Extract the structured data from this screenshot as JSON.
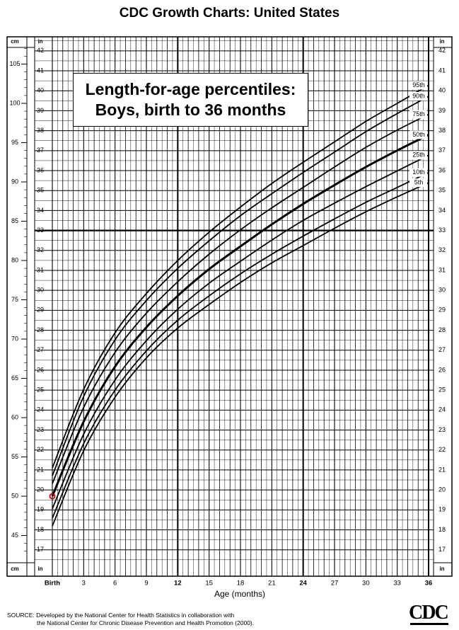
{
  "page": {
    "title": "CDC Growth Charts: United States",
    "source_line1": "SOURCE: Developed by the National Center for Health Statistics in collaboration with",
    "source_line2": "the National Center for Chronic Disease Prevention and Health Promotion (2000).",
    "logo_text": "CDC"
  },
  "chart_data": {
    "type": "line",
    "title_line1": "Length-for-age percentiles:",
    "title_line2": "Boys, birth to 36 months",
    "xlabel": "Age (months)",
    "x_ticks": [
      0,
      3,
      6,
      9,
      12,
      15,
      18,
      21,
      24,
      27,
      30,
      33,
      36
    ],
    "x_tick_labels": [
      "Birth",
      "3",
      "6",
      "9",
      "12",
      "15",
      "18",
      "21",
      "24",
      "27",
      "30",
      "33",
      "36"
    ],
    "x_bold_ticks": [
      12,
      24,
      36
    ],
    "xlim": [
      0,
      36
    ],
    "unit_cm": "cm",
    "unit_in": "in",
    "cm_ticks": [
      45,
      50,
      55,
      60,
      65,
      70,
      75,
      80,
      85,
      90,
      95,
      100,
      105
    ],
    "in_ticks": [
      17,
      18,
      19,
      20,
      21,
      22,
      23,
      24,
      25,
      26,
      27,
      28,
      29,
      30,
      31,
      32,
      33,
      34,
      35,
      36,
      37,
      38,
      39,
      40,
      41,
      42
    ],
    "ylim_cm": [
      42.9,
      108.5
    ],
    "grid": true,
    "x": [
      0,
      3,
      6,
      9,
      12,
      15,
      18,
      21,
      24,
      27,
      30,
      33,
      36
    ],
    "series": [
      {
        "name": "95th",
        "values": [
          53.6,
          63.6,
          70.8,
          75.8,
          80.0,
          83.6,
          86.8,
          89.8,
          92.5,
          95.1,
          97.7,
          100.0,
          102.3
        ]
      },
      {
        "name": "90th",
        "values": [
          52.6,
          62.7,
          69.9,
          74.9,
          79.0,
          82.5,
          85.7,
          88.5,
          91.2,
          93.8,
          96.4,
          98.7,
          100.9
        ]
      },
      {
        "name": "75th",
        "values": [
          51.6,
          61.3,
          68.3,
          73.3,
          77.3,
          80.8,
          83.9,
          86.7,
          89.3,
          91.9,
          94.4,
          96.6,
          98.6
        ]
      },
      {
        "name": "50th",
        "values": [
          50.0,
          59.5,
          66.5,
          71.5,
          75.5,
          78.9,
          81.8,
          84.6,
          87.2,
          89.6,
          91.9,
          94.0,
          96.0
        ]
      },
      {
        "name": "25th",
        "values": [
          48.4,
          57.9,
          64.8,
          69.8,
          73.8,
          77.1,
          79.9,
          82.6,
          85.1,
          87.3,
          89.4,
          91.4,
          93.4
        ]
      },
      {
        "name": "10th",
        "values": [
          47.2,
          56.7,
          63.5,
          68.5,
          72.4,
          75.5,
          78.3,
          80.8,
          83.1,
          85.3,
          87.4,
          89.3,
          91.2
        ]
      },
      {
        "name": "5th",
        "values": [
          46.2,
          55.8,
          62.6,
          67.6,
          71.4,
          74.4,
          77.2,
          79.7,
          81.9,
          84.1,
          86.2,
          88.1,
          89.9
        ]
      }
    ],
    "marker": {
      "x": 0,
      "y": 50.0,
      "color": "#cc0000"
    },
    "line_color": "#000000"
  }
}
